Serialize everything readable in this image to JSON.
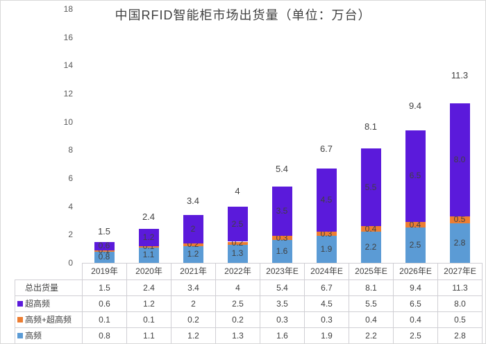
{
  "chart_data": {
    "type": "bar",
    "stacked": true,
    "title": "中国RFID智能柜市场出货量（单位：万台）",
    "categories": [
      "2019年",
      "2020年",
      "2021年",
      "2022年",
      "2023年E",
      "2024年E",
      "2025年E",
      "2026年E",
      "2027年E"
    ],
    "series": [
      {
        "name": "高频",
        "color": "#5b9bd5",
        "values": [
          0.8,
          1.1,
          1.2,
          1.3,
          1.6,
          1.9,
          2.2,
          2.5,
          2.8
        ],
        "labels": [
          "0.8",
          "1.1",
          "1.2",
          "1.3",
          "1.6",
          "1.9",
          "2.2",
          "2.5",
          "2.8"
        ]
      },
      {
        "name": "高频+超高频",
        "color": "#ed7d31",
        "values": [
          0.1,
          0.1,
          0.2,
          0.2,
          0.3,
          0.3,
          0.4,
          0.4,
          0.5
        ],
        "labels": [
          "0.1",
          "0.1",
          "0.2",
          "0.2",
          "0.3",
          "0.3",
          "0.4",
          "0.4",
          "0.5"
        ]
      },
      {
        "name": "超高频",
        "color": "#5b1adb",
        "values": [
          0.6,
          1.2,
          2,
          2.5,
          3.5,
          4.5,
          5.5,
          6.5,
          8.0
        ],
        "labels": [
          "0.6",
          "1.2",
          "2",
          "2.5",
          "3.5",
          "4.5",
          "5.5",
          "6.5",
          "8.0"
        ]
      }
    ],
    "totals": {
      "name": "总出货量",
      "values": [
        1.5,
        2.4,
        3.4,
        4,
        5.4,
        6.7,
        8.1,
        9.4,
        11.3
      ],
      "labels": [
        "1.5",
        "2.4",
        "3.4",
        "4",
        "5.4",
        "6.7",
        "8.1",
        "9.4",
        "11.3"
      ]
    },
    "ylim": [
      0,
      18
    ],
    "yticks": [
      0,
      2,
      4,
      6,
      8,
      10,
      12,
      14,
      16,
      18
    ],
    "grid": false,
    "legend_position": "data-table-left"
  },
  "data_table": {
    "rows": [
      {
        "label": "总出货量",
        "swatch": "",
        "values": [
          "1.5",
          "2.4",
          "3.4",
          "4",
          "5.4",
          "6.7",
          "8.1",
          "9.4",
          "11.3"
        ]
      },
      {
        "label": "超高频",
        "swatch": "#5b1adb",
        "values": [
          "0.6",
          "1.2",
          "2",
          "2.5",
          "3.5",
          "4.5",
          "5.5",
          "6.5",
          "8.0"
        ]
      },
      {
        "label": "高频+超高频",
        "swatch": "#ed7d31",
        "values": [
          "0.1",
          "0.1",
          "0.2",
          "0.2",
          "0.3",
          "0.3",
          "0.4",
          "0.4",
          "0.5"
        ]
      },
      {
        "label": "高频",
        "swatch": "#5b9bd5",
        "values": [
          "0.8",
          "1.1",
          "1.2",
          "1.3",
          "1.6",
          "1.9",
          "2.2",
          "2.5",
          "2.8"
        ]
      }
    ]
  }
}
